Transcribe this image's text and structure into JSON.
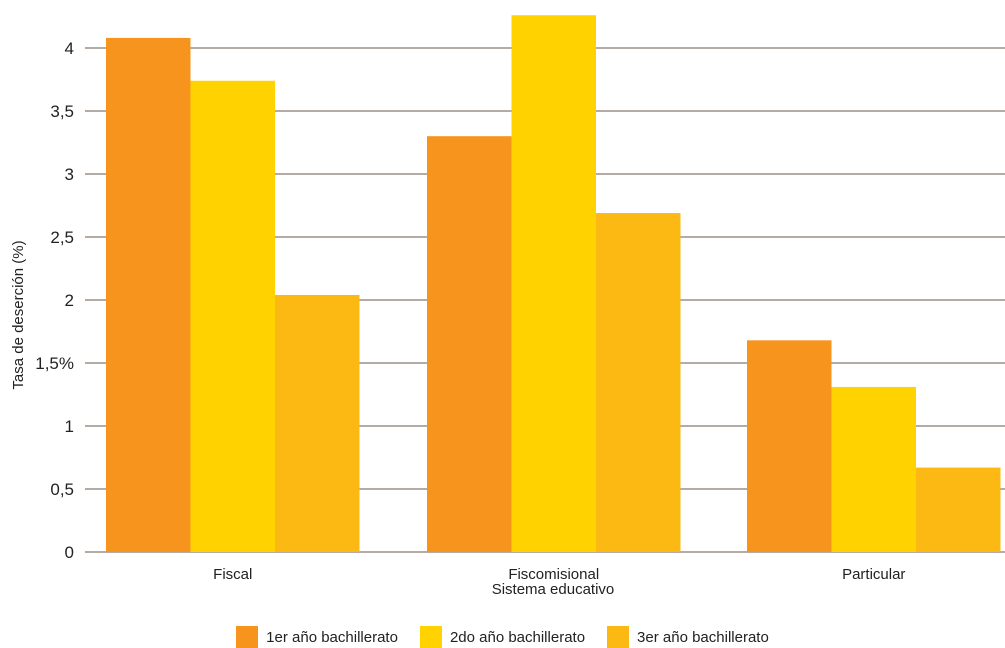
{
  "chart_data": {
    "type": "bar",
    "categories": [
      "Fiscal",
      "Fiscomisional",
      "Particular"
    ],
    "xlabel": "Sistema educativo",
    "ylabel": "Tasa de deserción (%)",
    "ylim": [
      0,
      4.25
    ],
    "yticks": [
      0,
      0.5,
      1,
      1.5,
      2,
      2.5,
      3,
      3.5,
      4
    ],
    "ytick_labels": [
      "0",
      "0,5",
      "1",
      "1,5%",
      "2",
      "2,5",
      "3",
      "3,5",
      "4"
    ],
    "grid": true,
    "legend_position": "bottom",
    "series": [
      {
        "name": "1er año bachillerato",
        "color": "#F7941D",
        "values": [
          4.08,
          3.3,
          1.68
        ]
      },
      {
        "name": "2do año bachillerato",
        "color": "#FFD200",
        "values": [
          3.74,
          4.26,
          1.31
        ]
      },
      {
        "name": "3er año bachillerato",
        "color": "#FDB913",
        "values": [
          2.04,
          2.69,
          0.67
        ]
      }
    ]
  }
}
